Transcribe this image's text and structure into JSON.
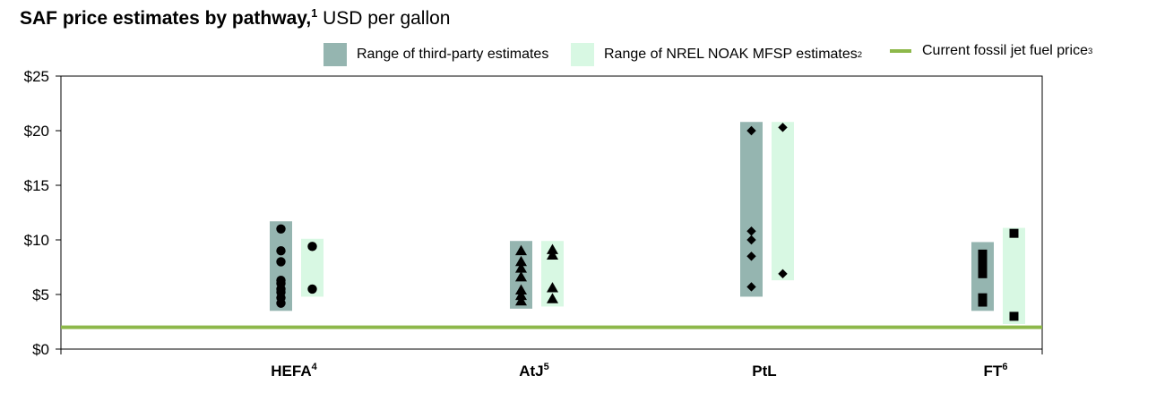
{
  "title": {
    "bold": "SAF price estimates by pathway,",
    "sup": "1",
    "rest": " USD per gallon"
  },
  "legend": [
    {
      "label": "Range of third-party estimates",
      "sup": "",
      "color": "#95b5b0",
      "kind": "box"
    },
    {
      "label": "Range of NREL NOAK MFSP estimates",
      "sup": "2",
      "color": "#d8f8e3",
      "kind": "box"
    },
    {
      "label": "Current fossil jet fuel price",
      "sup": "3",
      "color": "#8db84a",
      "kind": "line"
    }
  ],
  "chart_data": {
    "type": "scatter",
    "ylim": [
      0,
      25
    ],
    "yticks": [
      0,
      5,
      10,
      15,
      20,
      25
    ],
    "ytick_labels": [
      "$0",
      "$5",
      "$10",
      "$15",
      "$20",
      "$25"
    ],
    "reference_line": {
      "label": "Current fossil jet fuel price",
      "value": 2.0,
      "color": "#8db84a"
    },
    "categories": [
      {
        "name": "HEFA",
        "sup": "4",
        "marker": "circle",
        "third_party": {
          "range": [
            3.5,
            11.7
          ],
          "points": [
            11.0,
            9.0,
            8.0,
            6.3,
            6.0,
            5.5,
            5.2,
            4.7,
            4.2
          ]
        },
        "nrel": {
          "range": [
            4.8,
            10.1
          ],
          "points": [
            9.4,
            5.5
          ]
        }
      },
      {
        "name": "AtJ",
        "sup": "5",
        "marker": "triangle",
        "third_party": {
          "range": [
            3.7,
            9.9
          ],
          "points": [
            9.0,
            8.0,
            7.4,
            6.6,
            5.4,
            4.9,
            4.4
          ]
        },
        "nrel": {
          "range": [
            3.9,
            9.9
          ],
          "points": [
            9.1,
            8.6,
            5.6,
            4.6
          ]
        }
      },
      {
        "name": "PtL",
        "sup": "",
        "marker": "diamond",
        "third_party": {
          "range": [
            4.8,
            20.8
          ],
          "points": [
            20.0,
            10.8,
            10.0,
            8.5,
            5.7
          ]
        },
        "nrel": {
          "range": [
            6.3,
            20.8
          ],
          "points": [
            20.3,
            6.9
          ]
        }
      },
      {
        "name": "FT",
        "sup": "6",
        "marker": "square",
        "third_party": {
          "range": [
            3.5,
            9.8
          ],
          "points": [
            8.7,
            8.3,
            7.8,
            7.3,
            6.9,
            4.7,
            4.3
          ]
        },
        "nrel": {
          "range": [
            2.3,
            11.1
          ],
          "points": [
            10.6,
            3.0
          ]
        }
      }
    ]
  }
}
